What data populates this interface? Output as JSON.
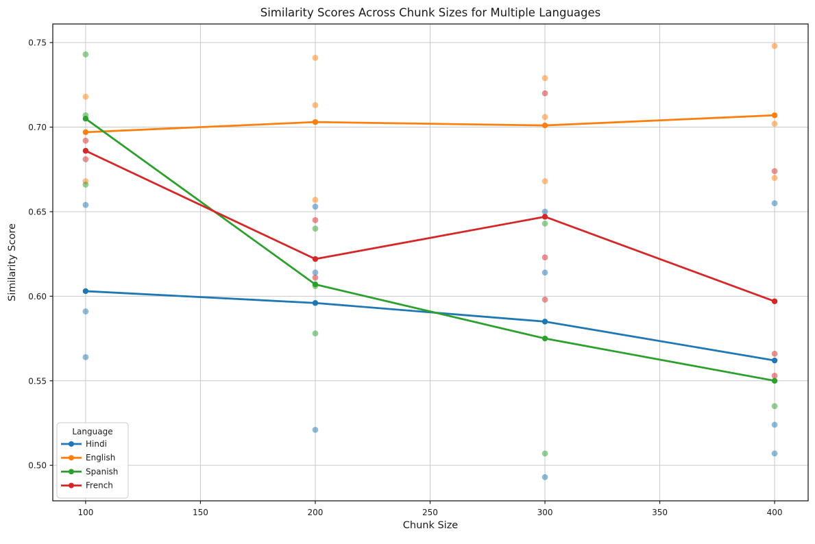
{
  "figure": {
    "background_color": "#ffffff",
    "grid_color": "#c9c9c9",
    "spine_color": "#1a1a1a",
    "text_color": "#1a1a1a"
  },
  "chart_data": {
    "type": "line",
    "title": "Similarity Scores Across Chunk Sizes for Multiple Languages",
    "xlabel": "Chunk Size",
    "ylabel": "Similarity Score",
    "grid": true,
    "legend": {
      "title": "Language",
      "position": "lower-left"
    },
    "x_ticks": [
      100,
      150,
      200,
      250,
      300,
      350,
      400
    ],
    "y_ticks": [
      0.5,
      0.55,
      0.6,
      0.65,
      0.7,
      0.75
    ],
    "xlim": [
      85.7,
      414.6
    ],
    "ylim": [
      0.479,
      0.761
    ],
    "x": [
      100,
      200,
      300,
      400
    ],
    "scatter_alpha": 0.5,
    "series": [
      {
        "name": "Hindi",
        "color": "#1f77b4",
        "mean_values": [
          0.603,
          0.596,
          0.585,
          0.562
        ],
        "scatter": [
          [
            0.654,
            0.591,
            0.564
          ],
          [
            0.653,
            0.614,
            0.521
          ],
          [
            0.65,
            0.614,
            0.493
          ],
          [
            0.655,
            0.524,
            0.507
          ]
        ]
      },
      {
        "name": "English",
        "color": "#ff7f0e",
        "mean_values": [
          0.697,
          0.703,
          0.701,
          0.707
        ],
        "scatter": [
          [
            0.718,
            0.668
          ],
          [
            0.741,
            0.713,
            0.657
          ],
          [
            0.729,
            0.706,
            0.668
          ],
          [
            0.748,
            0.702,
            0.67
          ]
        ]
      },
      {
        "name": "Spanish",
        "color": "#2ca02c",
        "mean_values": [
          0.705,
          0.607,
          0.575,
          0.55
        ],
        "scatter": [
          [
            0.743,
            0.707,
            0.666
          ],
          [
            0.64,
            0.606,
            0.578
          ],
          [
            0.643,
            0.507
          ],
          [
            0.535
          ]
        ]
      },
      {
        "name": "French",
        "color": "#d62728",
        "mean_values": [
          0.686,
          0.622,
          0.647,
          0.597
        ],
        "scatter": [
          [
            0.692,
            0.681
          ],
          [
            0.645,
            0.611
          ],
          [
            0.72,
            0.623,
            0.598
          ],
          [
            0.674,
            0.566,
            0.553
          ]
        ]
      }
    ]
  }
}
